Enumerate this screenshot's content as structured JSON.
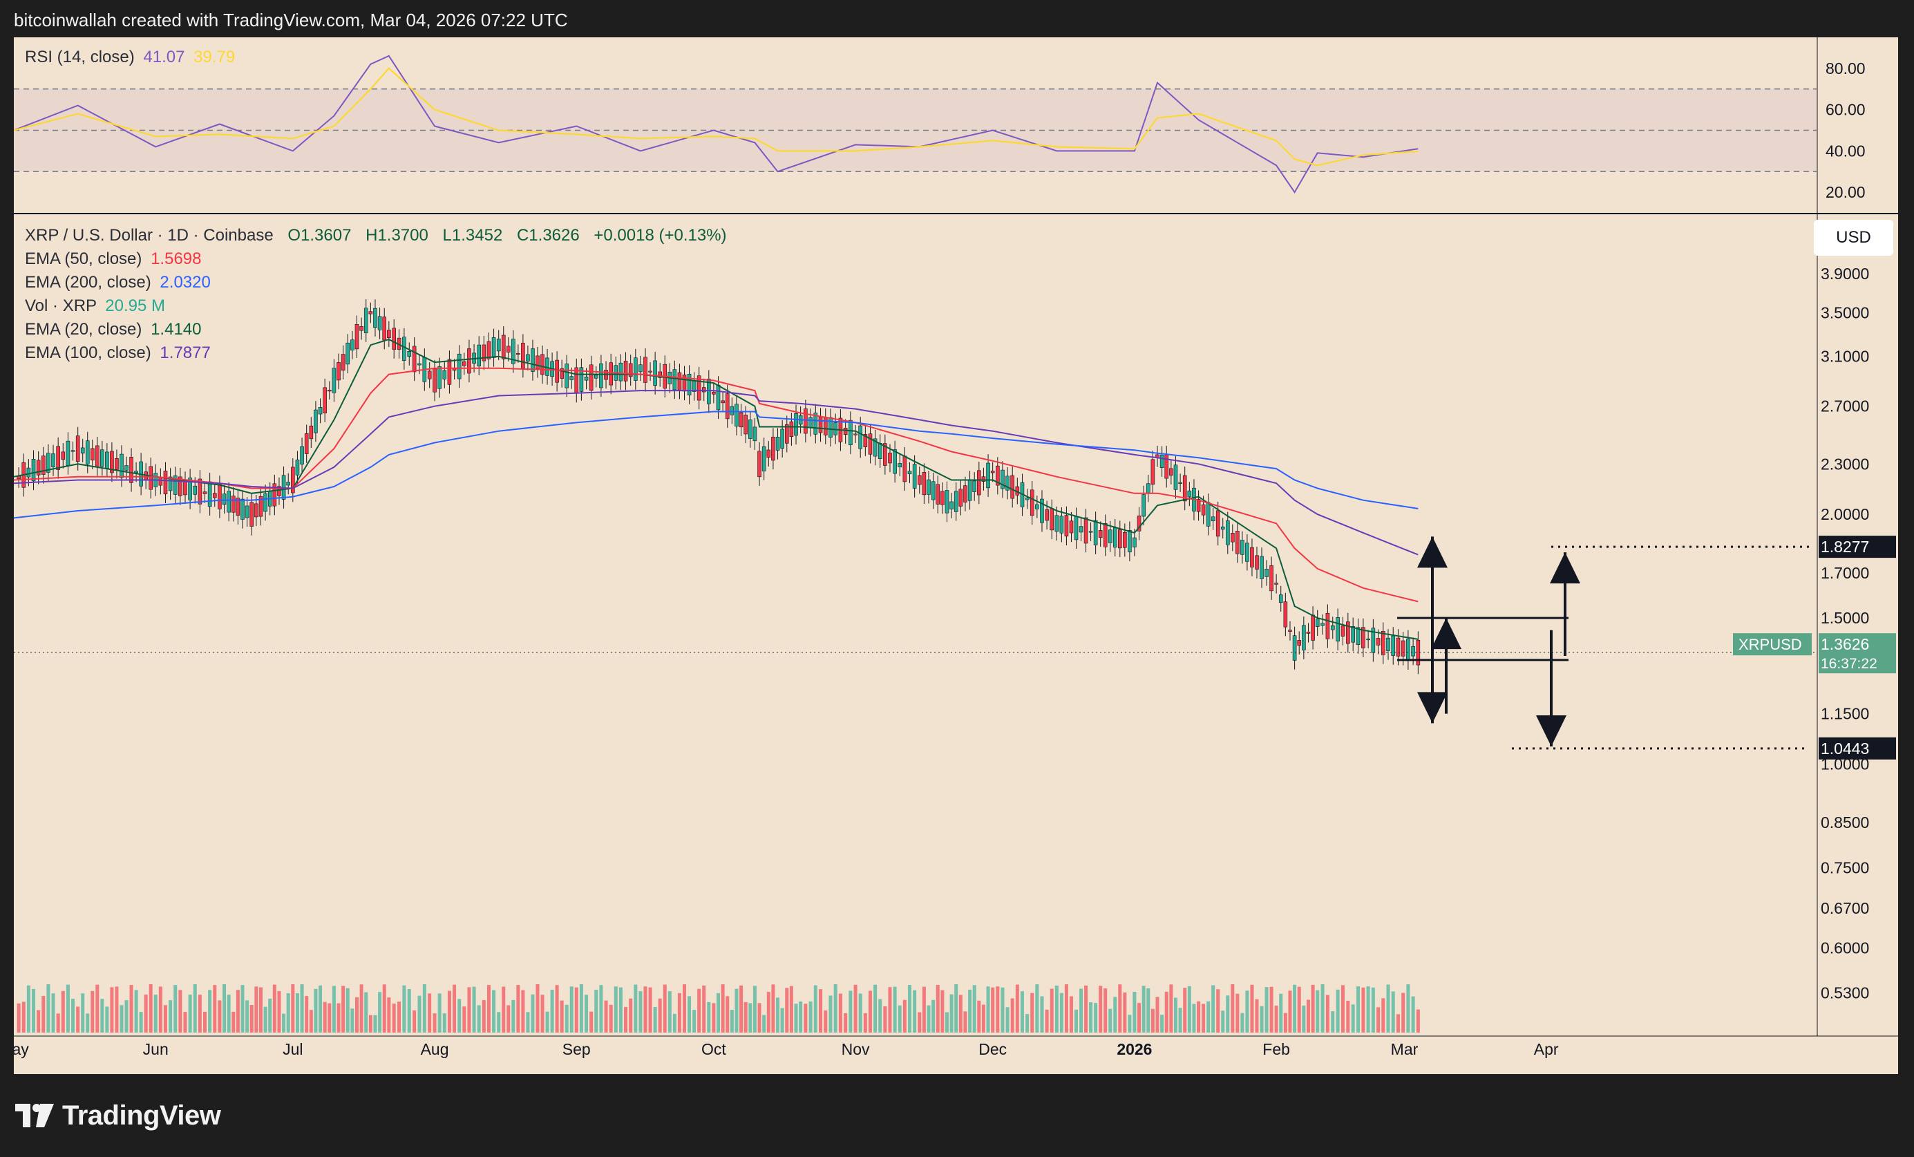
{
  "header": {
    "attribution": "bitcoinwallah created with TradingView.com, Mar 04, 2026 07:22 UTC"
  },
  "footer": {
    "brand": "TradingView"
  },
  "rsi_legend": {
    "label": "RSI (14, close)",
    "value": "41.07",
    "ma_value": "39.79"
  },
  "price_legend": {
    "symbol_line": "XRP / U.S. Dollar · 1D · Coinbase",
    "open": "O1.3607",
    "high": "H1.3700",
    "low": "L1.3452",
    "close": "C1.3626",
    "change": "+0.0018 (+0.13%)",
    "indicators": [
      {
        "label": "EMA (50, close)",
        "value": "1.5698",
        "color": "#f23645"
      },
      {
        "label": "EMA (200, close)",
        "value": "2.0320",
        "color": "#2962ff"
      },
      {
        "label": "Vol · XRP",
        "value": "20.95 M",
        "color": "#22ab94"
      },
      {
        "label": "EMA (20, close)",
        "value": "1.4140",
        "color": "#0b5d3b"
      },
      {
        "label": "EMA (100, close)",
        "value": "1.7877",
        "color": "#673ab7"
      }
    ]
  },
  "currency_button": "USD",
  "price_tag": {
    "symbol": "XRPUSD",
    "price": "1.3626",
    "countdown": "16:37:22"
  },
  "targets": {
    "upper": "1.8277",
    "lower": "1.0443"
  },
  "colors": {
    "up": "#22ab94",
    "down": "#f23645",
    "bg": "#f2e2d0",
    "ema20": "#0b5d3b",
    "ema50": "#f23645",
    "ema100": "#673ab7",
    "ema200": "#2962ff",
    "rsi": "#7e57c2",
    "rsi_ma": "#fdd835"
  },
  "chart_data": [
    {
      "type": "line",
      "title": "RSI (14, close)",
      "ylim": [
        10,
        95
      ],
      "y_ticks": [
        "80.00",
        "60.00",
        "40.00",
        "20.00"
      ],
      "bands": {
        "upper": 70,
        "middle": 50,
        "lower": 30
      },
      "x": [
        "May 1",
        "May 15",
        "Jun 1",
        "Jun 15",
        "Jul 1",
        "Jul 10",
        "Jul 18",
        "Jul 22",
        "Aug 1",
        "Aug 15",
        "Sep 1",
        "Sep 15",
        "Oct 1",
        "Oct 10",
        "Oct 15",
        "Nov 1",
        "Nov 15",
        "Dec 1",
        "Dec 15",
        "Jan 1",
        "Jan 6",
        "Jan 15",
        "Feb 1",
        "Feb 5",
        "Feb 10",
        "Feb 20",
        "Mar 4"
      ],
      "series": [
        {
          "name": "RSI",
          "values": [
            50,
            62,
            42,
            53,
            40,
            57,
            82,
            86,
            52,
            44,
            52,
            40,
            50,
            44,
            30,
            43,
            42,
            50,
            40,
            40,
            73,
            55,
            33,
            20,
            39,
            37,
            41.07
          ]
        },
        {
          "name": "RSI MA",
          "values": [
            50,
            58,
            47,
            48,
            46,
            52,
            70,
            80,
            60,
            50,
            48,
            46,
            47,
            46,
            40,
            40,
            42,
            45,
            42,
            41,
            56,
            58,
            45,
            36,
            33,
            38,
            39.79
          ]
        }
      ]
    },
    {
      "type": "candlestick",
      "title": "XRP / U.S. Dollar · 1D · Coinbase",
      "scale": "log",
      "ylim": [
        0.47,
        4.6
      ],
      "y_ticks": [
        "3.9000",
        "3.5000",
        "3.1000",
        "2.7000",
        "2.3000",
        "2.0000",
        "1.7000",
        "1.5000",
        "1.1500",
        "1.0000",
        "0.8500",
        "0.7500",
        "0.6700",
        "0.6000",
        "0.5300"
      ],
      "x_ticks": [
        "May",
        "Jun",
        "Jul",
        "Aug",
        "Sep",
        "Oct",
        "Nov",
        "Dec",
        "2026",
        "Feb",
        "Mar",
        "Apr"
      ],
      "x": [
        "May 1",
        "May 15",
        "Jun 1",
        "Jun 15",
        "Jun 22",
        "Jul 1",
        "Jul 10",
        "Jul 18",
        "Jul 22",
        "Aug 1",
        "Aug 15",
        "Sep 1",
        "Sep 15",
        "Oct 1",
        "Oct 10",
        "Oct 11",
        "Oct 20",
        "Nov 1",
        "Nov 15",
        "Nov 22",
        "Dec 1",
        "Dec 15",
        "Jan 1",
        "Jan 6",
        "Jan 15",
        "Feb 1",
        "Feb 5",
        "Feb 10",
        "Feb 20",
        "Mar 4"
      ],
      "series": [
        {
          "name": "Close",
          "values": [
            2.2,
            2.4,
            2.2,
            2.1,
            2.0,
            2.2,
            2.9,
            3.5,
            3.3,
            2.9,
            3.2,
            2.9,
            3.0,
            2.8,
            2.5,
            2.3,
            2.6,
            2.5,
            2.2,
            2.05,
            2.25,
            1.95,
            1.85,
            2.35,
            2.05,
            1.65,
            1.38,
            1.48,
            1.42,
            1.3626
          ]
        },
        {
          "name": "EMA (20, close)",
          "values": [
            2.22,
            2.3,
            2.22,
            2.17,
            2.12,
            2.15,
            2.6,
            3.2,
            3.25,
            3.05,
            3.1,
            2.95,
            2.95,
            2.88,
            2.7,
            2.55,
            2.55,
            2.52,
            2.3,
            2.2,
            2.2,
            2.02,
            1.9,
            2.05,
            2.1,
            1.82,
            1.55,
            1.5,
            1.45,
            1.414
          ]
        },
        {
          "name": "EMA (50, close)",
          "values": [
            2.2,
            2.22,
            2.22,
            2.18,
            2.15,
            2.15,
            2.4,
            2.8,
            2.95,
            3.0,
            3.0,
            2.98,
            2.95,
            2.9,
            2.82,
            2.72,
            2.65,
            2.58,
            2.45,
            2.38,
            2.32,
            2.22,
            2.12,
            2.12,
            2.08,
            1.95,
            1.82,
            1.72,
            1.63,
            1.5698
          ]
        },
        {
          "name": "EMA (100, close)",
          "values": [
            2.18,
            2.2,
            2.2,
            2.18,
            2.16,
            2.15,
            2.28,
            2.5,
            2.62,
            2.7,
            2.78,
            2.8,
            2.82,
            2.82,
            2.78,
            2.74,
            2.72,
            2.68,
            2.6,
            2.56,
            2.52,
            2.44,
            2.36,
            2.34,
            2.3,
            2.18,
            2.08,
            2.0,
            1.9,
            1.7877
          ]
        },
        {
          "name": "EMA (200, close)",
          "values": [
            1.98,
            2.02,
            2.05,
            2.08,
            2.08,
            2.1,
            2.16,
            2.28,
            2.36,
            2.44,
            2.52,
            2.58,
            2.62,
            2.66,
            2.66,
            2.62,
            2.6,
            2.58,
            2.52,
            2.5,
            2.47,
            2.43,
            2.39,
            2.37,
            2.34,
            2.27,
            2.2,
            2.15,
            2.08,
            2.032
          ]
        }
      ]
    }
  ]
}
